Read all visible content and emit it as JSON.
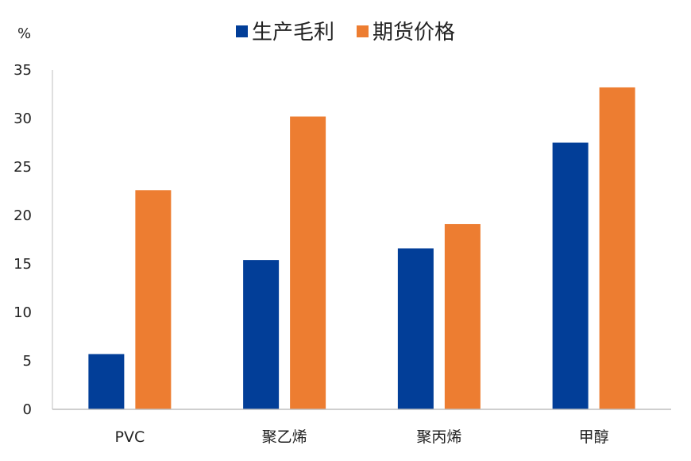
{
  "chart_data": {
    "type": "bar",
    "title": "",
    "xlabel": "",
    "ylabel": "%",
    "ylim": [
      0,
      35
    ],
    "yticks": [
      0,
      5,
      10,
      15,
      20,
      25,
      30,
      35
    ],
    "grid": false,
    "legend_position": "top",
    "categories": [
      "PVC",
      "聚乙烯",
      "聚丙烯",
      "甲醇"
    ],
    "series": [
      {
        "name": "生产毛利",
        "color": "#023e98",
        "values": [
          5.7,
          15.4,
          16.6,
          27.5
        ]
      },
      {
        "name": "期货价格",
        "color": "#ed7d31",
        "values": [
          22.6,
          30.2,
          19.1,
          33.2
        ]
      }
    ]
  }
}
